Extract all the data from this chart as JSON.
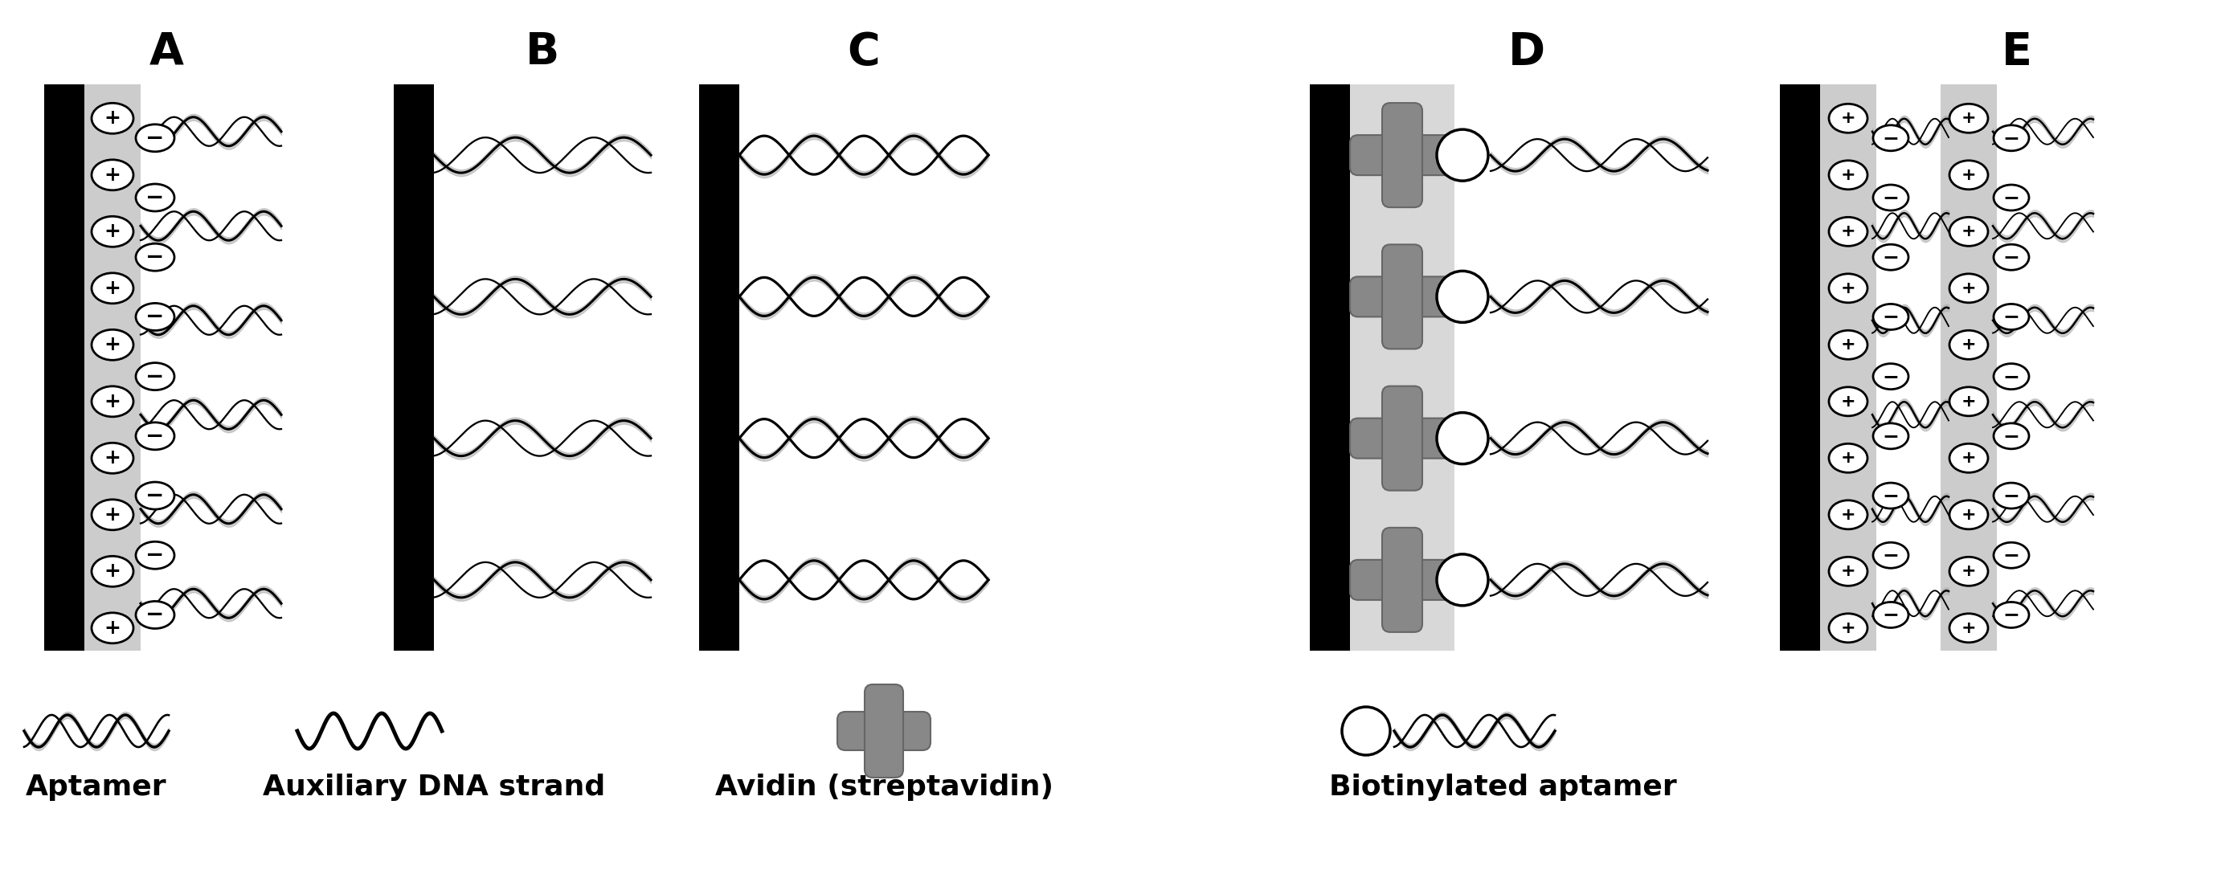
{
  "panel_labels": [
    "A",
    "B",
    "C",
    "D",
    "E"
  ],
  "panel_label_fontsize": 40,
  "legend_labels": [
    "Aptamer",
    "Auxiliary DNA strand",
    "Avidin (streptavidin)",
    "Biotinylated aptamer"
  ],
  "legend_fontsize": 26,
  "bg_color": "#ffffff",
  "electrode_color": "#000000",
  "layer_color": "#cccccc",
  "avidin_color": "#888888",
  "wave_gray": "#aaaaaa",
  "ion_plus_char": "+",
  "ion_minus_char": "−"
}
